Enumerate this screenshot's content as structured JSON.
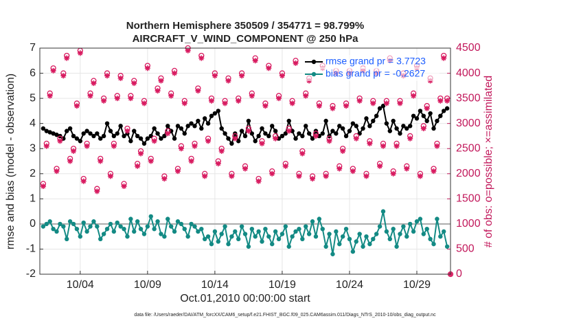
{
  "chart_data": {
    "type": "line",
    "title": "Northern Hemisphere 350509 / 354771 = 98.799%",
    "subtitle": "AIRCRAFT_V_WIND_COMPONENT @ 250 hPa",
    "x_label": "Oct.01,2010 00:00:00 start",
    "y_label": "rmse and bias (model - observation)",
    "y2_label": "# of obs: o=possible; ×=assimilated",
    "footer": "data file: /Users/raeder/DAI/ATM_forcXX/CAM6_setup/f.e21.FHIST_BGC.f09_025.CAM6assim.011/Diags_NTrS_2010-10/obs_diag_output.nc",
    "xlim": [
      1,
      31.5
    ],
    "xticks": [
      {
        "value": 4,
        "label": "10/04"
      },
      {
        "value": 9,
        "label": "10/09"
      },
      {
        "value": 14,
        "label": "10/14"
      },
      {
        "value": 19,
        "label": "10/19"
      },
      {
        "value": 24,
        "label": "10/24"
      },
      {
        "value": 29,
        "label": "10/29"
      }
    ],
    "ylim": [
      -2,
      7
    ],
    "yticks": [
      -2,
      -1,
      0,
      1,
      2,
      3,
      4,
      5,
      6,
      7
    ],
    "y2lim": [
      0,
      4500
    ],
    "y2ticks": [
      0,
      500,
      1000,
      1500,
      2000,
      2500,
      3000,
      3500,
      4000,
      4500
    ],
    "grid": true,
    "reference_line": 0,
    "legend": "upper right",
    "x": [
      1.25,
      1.5,
      1.75,
      2,
      2.25,
      2.5,
      2.75,
      3,
      3.25,
      3.5,
      3.75,
      4,
      4.25,
      4.5,
      4.75,
      5,
      5.25,
      5.5,
      5.75,
      6,
      6.25,
      6.5,
      6.75,
      7,
      7.25,
      7.5,
      7.75,
      8,
      8.25,
      8.5,
      8.75,
      9,
      9.25,
      9.5,
      9.75,
      10,
      10.25,
      10.5,
      10.75,
      11,
      11.25,
      11.5,
      11.75,
      12,
      12.25,
      12.5,
      12.75,
      13,
      13.25,
      13.5,
      13.75,
      14,
      14.25,
      14.5,
      14.75,
      15,
      15.25,
      15.5,
      15.75,
      16,
      16.25,
      16.5,
      16.75,
      17,
      17.25,
      17.5,
      17.75,
      18,
      18.25,
      18.5,
      18.75,
      19,
      19.25,
      19.5,
      19.75,
      20,
      20.25,
      20.5,
      20.75,
      21,
      21.25,
      21.5,
      21.75,
      22,
      22.25,
      22.5,
      22.75,
      23,
      23.25,
      23.5,
      23.75,
      24,
      24.25,
      24.5,
      24.75,
      25,
      25.25,
      25.5,
      25.75,
      26,
      26.25,
      26.5,
      26.75,
      27,
      27.25,
      27.5,
      27.75,
      28,
      28.25,
      28.5,
      28.75,
      29,
      29.25,
      29.5,
      29.75,
      30,
      30.25,
      30.5,
      30.75,
      31,
      31.25,
      31.5
    ],
    "series": [
      {
        "name": "rmse grand pr = 3.7723",
        "color": "#000000",
        "marker": "dot",
        "values": [
          3.8,
          3.7,
          3.65,
          3.6,
          3.55,
          3.5,
          3.4,
          3.7,
          3.8,
          3.5,
          3.4,
          3.3,
          3.6,
          3.7,
          3.6,
          3.5,
          3.6,
          3.4,
          3.5,
          4.0,
          3.7,
          3.5,
          3.6,
          3.9,
          3.5,
          3.6,
          3.3,
          3.7,
          3.5,
          3.4,
          3.2,
          3.4,
          3.5,
          3.8,
          3.6,
          3.4,
          3.5,
          3.9,
          3.7,
          3.4,
          3.9,
          3.8,
          3.6,
          3.9,
          4.0,
          3.9,
          4.1,
          3.8,
          4.2,
          4.0,
          4.3,
          4.4,
          4.5,
          3.8,
          3.6,
          3.4,
          3.2,
          3.6,
          3.3,
          3.7,
          3.5,
          4.1,
          3.6,
          3.3,
          3.5,
          3.8,
          3.6,
          3.5,
          3.9,
          3.7,
          3.4,
          3.5,
          3.6,
          4.1,
          3.7,
          3.4,
          3.6,
          3.5,
          3.9,
          3.6,
          3.4,
          3.7,
          3.5,
          3.6,
          4.1,
          3.5,
          3.7,
          3.6,
          3.9,
          3.8,
          3.5,
          3.7,
          4.0,
          3.9,
          3.6,
          3.8,
          4.2,
          3.9,
          4.1,
          4.3,
          4.6,
          4.7,
          4.0,
          3.7,
          4.1,
          3.8,
          3.6,
          3.9,
          3.8,
          3.9,
          4.3,
          4.2,
          4.5,
          4.3,
          4.1,
          4.4,
          3.8,
          4.1,
          4.3,
          4.5,
          4.6,
          null
        ]
      },
      {
        "name": "bias grand pr = -0.2627",
        "color": "#138a84",
        "marker": "dot",
        "values": [
          -0.1,
          0.0,
          0.1,
          -0.2,
          -0.3,
          0.0,
          -0.1,
          -0.6,
          0.1,
          0.0,
          -0.2,
          -0.5,
          0.05,
          -0.3,
          -0.1,
          0.1,
          -0.1,
          -0.6,
          -0.4,
          -0.2,
          0.0,
          -0.3,
          0.05,
          -0.1,
          -0.2,
          -0.5,
          0.2,
          -0.3,
          0.1,
          -0.2,
          -0.4,
          -0.1,
          0.3,
          -0.2,
          0.1,
          -0.4,
          -0.5,
          0.2,
          -0.1,
          -0.3,
          0.1,
          0.0,
          -0.2,
          -0.5,
          0.0,
          -0.1,
          -0.3,
          -0.2,
          -0.6,
          -0.5,
          -0.8,
          -0.3,
          -0.7,
          -0.4,
          -0.1,
          -0.8,
          -0.5,
          -0.3,
          -0.6,
          -0.1,
          -0.4,
          -0.9,
          -0.2,
          -0.5,
          -0.3,
          -0.7,
          -0.2,
          -0.5,
          -0.8,
          -0.3,
          -0.6,
          -0.4,
          -0.1,
          -0.9,
          -0.5,
          -0.3,
          -0.2,
          -0.6,
          -0.1,
          -0.4,
          0.1,
          -0.5,
          0.2,
          -0.2,
          -0.9,
          -0.4,
          -1.2,
          -0.3,
          -0.8,
          -0.5,
          -0.2,
          -0.6,
          -1.1,
          -0.7,
          -0.4,
          -0.9,
          -0.5,
          -0.8,
          -0.6,
          -0.4,
          -0.1,
          0.5,
          -0.3,
          -0.6,
          -0.2,
          -0.9,
          -0.4,
          -0.1,
          -0.5,
          0.0,
          -0.3,
          0.1,
          0.2,
          -0.4,
          -0.2,
          -0.6,
          -0.8,
          0.2,
          -0.5,
          -0.3,
          -0.9,
          null
        ]
      },
      {
        "color": "#d81b60",
        "marker": "o",
        "axis": "y2",
        "values": [
          1800,
          2600,
          3600,
          4100,
          2100,
          2700,
          4000,
          4350,
          2300,
          2500,
          3400,
          4450,
          1900,
          2600,
          3600,
          3850,
          1700,
          2300,
          3500,
          4000,
          2000,
          2600,
          3550,
          3950,
          1800,
          2900,
          3550,
          3850,
          2200,
          2450,
          3450,
          4150,
          2300,
          2700,
          3700,
          3900,
          1950,
          2850,
          3600,
          4050,
          2100,
          2550,
          3450,
          4500,
          2300,
          2600,
          3700,
          4350,
          2000,
          2700,
          3500,
          4000,
          2250,
          2500,
          3450,
          3900,
          2000,
          2750,
          3500,
          4000,
          2150,
          2900,
          3600,
          4300,
          1900,
          2650,
          3400,
          4150,
          2050,
          2750,
          3550,
          4000,
          2200,
          2900,
          3450,
          4250,
          2000,
          2450,
          3600,
          3900,
          1950,
          2800,
          3400,
          4150,
          2000,
          2700,
          3350,
          4050,
          2150,
          2500,
          3400,
          4050,
          2100,
          2750,
          3500,
          4100,
          2000,
          2650,
          3450,
          4050,
          2200,
          2600,
          3450,
          4300,
          2050,
          2600,
          3450,
          4000,
          2150,
          2750,
          3600,
          4150,
          2000,
          2950,
          3350,
          3900,
          2100,
          2600,
          3500,
          4350,
          3500,
          0
        ]
      },
      {
        "color": "#d81b60",
        "marker": "*",
        "axis": "y2",
        "values": [
          1750,
          2550,
          3550,
          4050,
          2050,
          2650,
          3950,
          4300,
          2250,
          2450,
          3350,
          4400,
          1850,
          2550,
          3550,
          3800,
          1650,
          2250,
          3450,
          3950,
          1950,
          2550,
          3500,
          3900,
          1750,
          2850,
          3500,
          3800,
          2150,
          2400,
          3400,
          4100,
          2250,
          2650,
          3650,
          3850,
          1900,
          2800,
          3550,
          4000,
          2050,
          2500,
          3400,
          4450,
          2250,
          2550,
          3650,
          4300,
          1950,
          2650,
          3450,
          3950,
          2200,
          2450,
          3400,
          3850,
          1950,
          2700,
          3450,
          3950,
          2100,
          2850,
          3550,
          4250,
          1850,
          2600,
          3350,
          4100,
          2000,
          2700,
          3500,
          3950,
          2150,
          2850,
          3400,
          4200,
          1950,
          2400,
          3550,
          3850,
          1900,
          2750,
          3350,
          4100,
          1950,
          2650,
          3300,
          4000,
          2100,
          2450,
          3350,
          4000,
          2050,
          2700,
          3450,
          4050,
          1950,
          2600,
          3400,
          4000,
          2150,
          2550,
          3400,
          4250,
          2000,
          2550,
          3400,
          3950,
          2100,
          2700,
          3550,
          4100,
          1950,
          2900,
          3300,
          3850,
          2050,
          2550,
          3450,
          4300,
          3450,
          0
        ]
      }
    ]
  }
}
